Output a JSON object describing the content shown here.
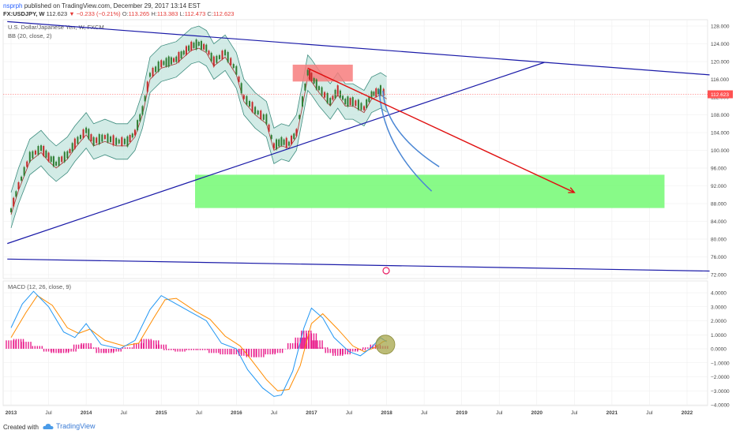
{
  "header": {
    "author": "nsprph",
    "published_text": "published on TradingView.com, December 29, 2017 13:14 EST",
    "symbol": "FX:USDJPY, W",
    "last": "112.623",
    "change": "▼ −0.233 (−0.21%)",
    "open_label": "O:",
    "open": "113.265",
    "high_label": "H:",
    "high": "113.383",
    "low_label": "L:",
    "low": "112.473",
    "close_label": "C:",
    "close": "112.623"
  },
  "footer": {
    "created_with": "Created with",
    "brand": "TradingView"
  },
  "colors": {
    "trendline": "#1a1aa8",
    "bb_fill": "#bfe3dc",
    "bb_line": "#3d8c7e",
    "bb_mid": "#a83232",
    "candle_up": "#2e7d32",
    "candle_down": "#c62828",
    "red_zone": "#f77c7c",
    "green_zone": "#7bfa7b",
    "arrow": "#e01010",
    "projection": "#4a86d4",
    "price_line": "#ff5252",
    "macd_line": "#2196f3",
    "signal_line": "#ff8c00",
    "hist": "#e91e8c",
    "circle": "#a6a64a"
  },
  "chart_data": [
    {
      "type": "line",
      "title": "U.S. Dollar/Japanese Yen, W, FXCM",
      "indicator": "BB (20, close, 2)",
      "x_ticks": [
        "2013",
        "Jul",
        "2014",
        "Jul",
        "2015",
        "Jul",
        "2016",
        "Jul",
        "2017",
        "Jul",
        "2018",
        "Jul",
        "2019",
        "Jul",
        "2020",
        "Jul",
        "2021",
        "Jul",
        "2022"
      ],
      "y_ticks": [
        "128.000",
        "124.000",
        "120.000",
        "116.000",
        "112.000",
        "108.000",
        "104.000",
        "100.000",
        "96.000",
        "92.000",
        "88.000",
        "84.000",
        "80.000",
        "76.000",
        "72.000"
      ],
      "ylim": [
        72,
        128
      ],
      "last_price_label": "112.623",
      "series": [
        {
          "values": [
            [
              2013.0,
              86.5
            ],
            [
              2013.1,
              92
            ],
            [
              2013.25,
              98.5
            ],
            [
              2013.4,
              100.5
            ],
            [
              2013.5,
              98.5
            ],
            [
              2013.6,
              97
            ],
            [
              2013.75,
              99
            ],
            [
              2013.85,
              101.5
            ],
            [
              2014.0,
              104.5
            ],
            [
              2014.1,
              102
            ],
            [
              2014.25,
              103
            ],
            [
              2014.4,
              102
            ],
            [
              2014.55,
              102
            ],
            [
              2014.65,
              104
            ],
            [
              2014.75,
              109
            ],
            [
              2014.85,
              117
            ],
            [
              2015.0,
              119.5
            ],
            [
              2015.1,
              120
            ],
            [
              2015.2,
              120.5
            ],
            [
              2015.4,
              123.5
            ],
            [
              2015.5,
              124
            ],
            [
              2015.6,
              123
            ],
            [
              2015.7,
              120
            ],
            [
              2015.85,
              122
            ],
            [
              2016.0,
              118
            ],
            [
              2016.1,
              112
            ],
            [
              2016.25,
              109
            ],
            [
              2016.4,
              107
            ],
            [
              2016.5,
              101
            ],
            [
              2016.6,
              102
            ],
            [
              2016.7,
              101.5
            ],
            [
              2016.8,
              104
            ],
            [
              2016.88,
              111
            ],
            [
              2016.95,
              117.5
            ],
            [
              2017.0,
              116.5
            ],
            [
              2017.1,
              114
            ],
            [
              2017.25,
              111
            ],
            [
              2017.35,
              113.5
            ],
            [
              2017.45,
              111
            ],
            [
              2017.55,
              111
            ],
            [
              2017.7,
              109.5
            ],
            [
              2017.8,
              112.5
            ],
            [
              2017.92,
              113.5
            ],
            [
              2018.0,
              112.6
            ]
          ]
        }
      ],
      "annotations": {
        "red_zone": {
          "from": 2016.75,
          "to": 2017.55,
          "low": 115.5,
          "high": 119.3
        },
        "green_zone": {
          "from": 2015.45,
          "to": 2021.7,
          "low": 87.0,
          "high": 94.5
        },
        "trend_upper": [
          [
            2012.95,
            129.0
          ],
          [
            2022.3,
            117.0
          ]
        ],
        "trend_lower_rising": [
          [
            2012.95,
            79.0
          ],
          [
            2020.1,
            119.8
          ]
        ],
        "trend_bottom": [
          [
            2012.95,
            75.5
          ],
          [
            2022.3,
            72.8
          ]
        ],
        "arrow": [
          [
            2016.95,
            118.5
          ],
          [
            2020.5,
            90.5
          ]
        ],
        "projection_1": [
          [
            2017.9,
            113.8
          ],
          [
            2018.6,
            90.8
          ]
        ],
        "projection_2": [
          [
            2017.95,
            113.4
          ],
          [
            2018.7,
            96.3
          ]
        ]
      }
    },
    {
      "type": "line",
      "title": "MACD (12, 26, close, 9)",
      "y_ticks": [
        "4.0000",
        "3.0000",
        "2.0000",
        "1.0000",
        "0.0000",
        "−1.0000",
        "−2.0000",
        "−3.0000",
        "−4.0000"
      ],
      "ylim": [
        -4,
        4
      ],
      "series": [
        {
          "name": "MACD",
          "values": [
            [
              2013.0,
              1.5
            ],
            [
              2013.15,
              3.2
            ],
            [
              2013.3,
              4.1
            ],
            [
              2013.5,
              3.0
            ],
            [
              2013.7,
              1.2
            ],
            [
              2013.85,
              0.8
            ],
            [
              2014.0,
              1.8
            ],
            [
              2014.2,
              0.3
            ],
            [
              2014.45,
              0.0
            ],
            [
              2014.65,
              0.6
            ],
            [
              2014.85,
              2.8
            ],
            [
              2015.0,
              3.8
            ],
            [
              2015.1,
              3.5
            ],
            [
              2015.4,
              2.6
            ],
            [
              2015.6,
              2.0
            ],
            [
              2015.8,
              0.4
            ],
            [
              2016.0,
              0.0
            ],
            [
              2016.15,
              -1.5
            ],
            [
              2016.35,
              -2.8
            ],
            [
              2016.5,
              -3.4
            ],
            [
              2016.6,
              -3.3
            ],
            [
              2016.75,
              -1.6
            ],
            [
              2016.9,
              1.5
            ],
            [
              2017.0,
              2.9
            ],
            [
              2017.15,
              2.2
            ],
            [
              2017.3,
              0.8
            ],
            [
              2017.5,
              -0.2
            ],
            [
              2017.65,
              -0.5
            ],
            [
              2017.8,
              0.1
            ],
            [
              2017.92,
              0.8
            ],
            [
              2018.0,
              0.5
            ]
          ]
        },
        {
          "name": "Signal",
          "values": [
            [
              2013.0,
              0.8
            ],
            [
              2013.2,
              2.6
            ],
            [
              2013.35,
              3.8
            ],
            [
              2013.55,
              3.1
            ],
            [
              2013.75,
              1.5
            ],
            [
              2013.9,
              1.1
            ],
            [
              2014.05,
              1.4
            ],
            [
              2014.25,
              0.6
            ],
            [
              2014.5,
              0.2
            ],
            [
              2014.7,
              0.4
            ],
            [
              2014.9,
              2.2
            ],
            [
              2015.05,
              3.5
            ],
            [
              2015.2,
              3.6
            ],
            [
              2015.45,
              2.7
            ],
            [
              2015.65,
              2.1
            ],
            [
              2015.85,
              0.9
            ],
            [
              2016.05,
              0.2
            ],
            [
              2016.2,
              -0.8
            ],
            [
              2016.4,
              -2.2
            ],
            [
              2016.55,
              -3.0
            ],
            [
              2016.7,
              -2.9
            ],
            [
              2016.85,
              -1.2
            ],
            [
              2017.0,
              1.8
            ],
            [
              2017.15,
              2.5
            ],
            [
              2017.35,
              1.4
            ],
            [
              2017.55,
              0.2
            ],
            [
              2017.7,
              -0.2
            ],
            [
              2017.85,
              0.1
            ],
            [
              2017.95,
              0.5
            ],
            [
              2018.0,
              0.6
            ]
          ]
        }
      ],
      "histogram": [
        [
          2013.0,
          0.6
        ],
        [
          2013.1,
          0.7
        ],
        [
          2013.2,
          0.5
        ],
        [
          2013.35,
          0.2
        ],
        [
          2013.5,
          -0.2
        ],
        [
          2013.6,
          -0.3
        ],
        [
          2013.7,
          -0.3
        ],
        [
          2013.8,
          -0.2
        ],
        [
          2013.9,
          0.3
        ],
        [
          2014.0,
          0.4
        ],
        [
          2014.1,
          0.1
        ],
        [
          2014.2,
          -0.3
        ],
        [
          2014.3,
          -0.3
        ],
        [
          2014.4,
          -0.2
        ],
        [
          2014.55,
          0.1
        ],
        [
          2014.7,
          0.4
        ],
        [
          2014.8,
          0.7
        ],
        [
          2014.9,
          0.6
        ],
        [
          2015.0,
          0.3
        ],
        [
          2015.1,
          -0.1
        ],
        [
          2015.25,
          -0.2
        ],
        [
          2015.4,
          -0.1
        ],
        [
          2015.55,
          -0.1
        ],
        [
          2015.7,
          -0.3
        ],
        [
          2015.85,
          -0.4
        ],
        [
          2016.0,
          -0.4
        ],
        [
          2016.1,
          -0.5
        ],
        [
          2016.2,
          -0.6
        ],
        [
          2016.3,
          -0.6
        ],
        [
          2016.45,
          -0.4
        ],
        [
          2016.55,
          -0.3
        ],
        [
          2016.65,
          0.0
        ],
        [
          2016.75,
          0.4
        ],
        [
          2016.85,
          0.8
        ],
        [
          2016.93,
          1.3
        ],
        [
          2017.0,
          1.1
        ],
        [
          2017.08,
          0.6
        ],
        [
          2017.15,
          0.1
        ],
        [
          2017.25,
          -0.3
        ],
        [
          2017.35,
          -0.5
        ],
        [
          2017.45,
          -0.4
        ],
        [
          2017.55,
          -0.2
        ],
        [
          2017.65,
          -0.1
        ],
        [
          2017.75,
          0.1
        ],
        [
          2017.85,
          0.3
        ],
        [
          2017.95,
          0.2
        ]
      ]
    }
  ]
}
